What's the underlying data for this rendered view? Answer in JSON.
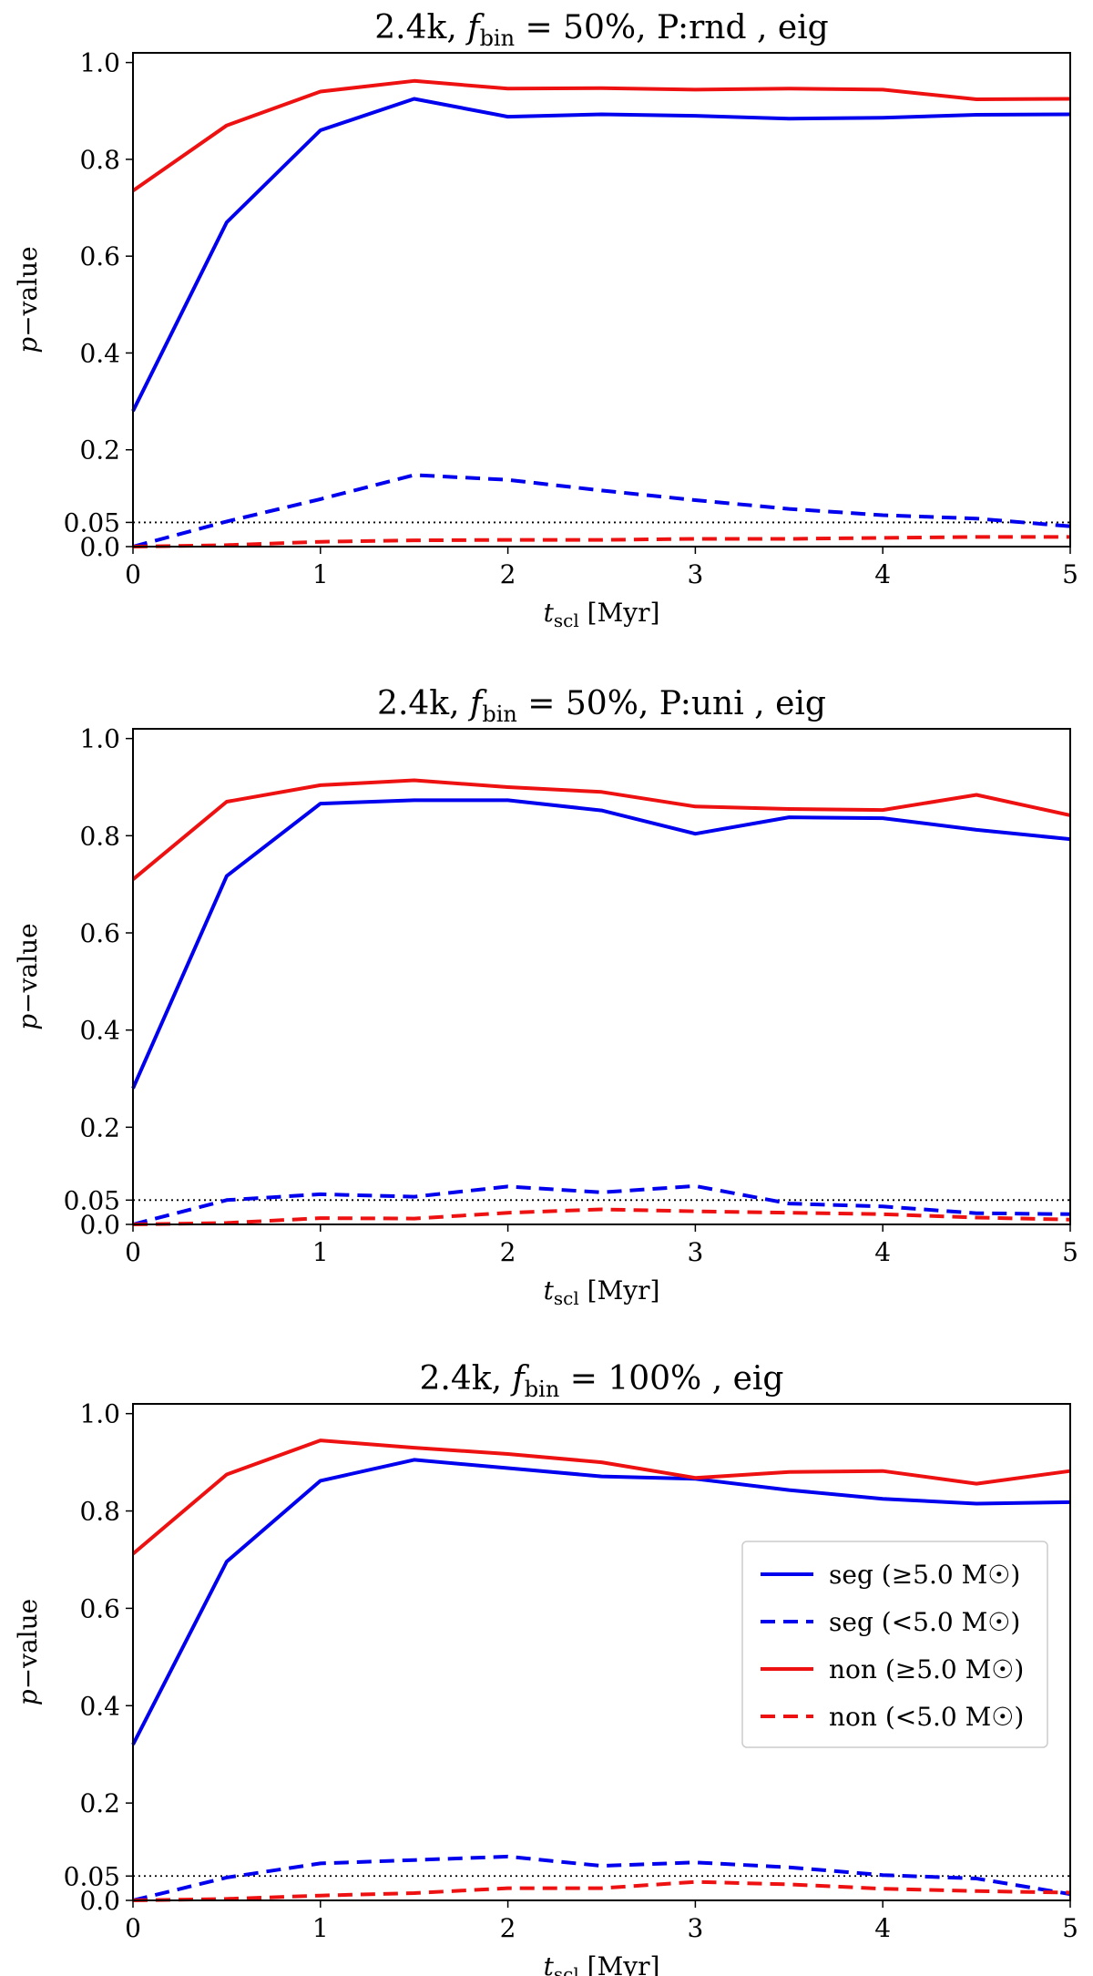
{
  "chart_data": [
    {
      "type": "line",
      "title": "2.4k, f_bin = 50%, P:rnd , eig",
      "title_parts": {
        "prefix": "2.4k, ",
        "f": "f",
        "sub": "bin",
        "rest": " = 50%, P:rnd , eig"
      },
      "xlabel": {
        "t": "t",
        "sub": "scl",
        "unit": " [Myr]"
      },
      "ylabel": "p−value",
      "xlim": [
        0,
        5
      ],
      "ylim": [
        0,
        1.02
      ],
      "xticks": [
        "0",
        "1",
        "2",
        "3",
        "4",
        "5"
      ],
      "yticks": [
        "0.0",
        "0.05",
        "0.2",
        "0.4",
        "0.6",
        "0.8",
        "1.0"
      ],
      "threshold": 0.05,
      "x": [
        0,
        0.5,
        1,
        1.5,
        2,
        2.5,
        3,
        3.5,
        4,
        4.5,
        5
      ],
      "series": [
        {
          "name": "seg (≥5.0 M☉)",
          "color": "#0000ee",
          "style": "solid",
          "values": [
            0.28,
            0.67,
            0.86,
            0.925,
            0.888,
            0.893,
            0.89,
            0.884,
            0.886,
            0.892,
            0.893
          ]
        },
        {
          "name": "seg (<5.0 M☉)",
          "color": "#0000ee",
          "style": "dashed",
          "values": [
            0.0,
            0.052,
            0.098,
            0.148,
            0.138,
            0.116,
            0.096,
            0.078,
            0.065,
            0.058,
            0.042
          ]
        },
        {
          "name": "non (≥5.0 M☉)",
          "color": "#ee1111",
          "style": "solid",
          "values": [
            0.735,
            0.87,
            0.94,
            0.962,
            0.946,
            0.947,
            0.944,
            0.946,
            0.944,
            0.924,
            0.925
          ]
        },
        {
          "name": "non (<5.0 M☉)",
          "color": "#ee1111",
          "style": "dashed",
          "values": [
            0.0,
            0.003,
            0.01,
            0.013,
            0.014,
            0.014,
            0.016,
            0.016,
            0.018,
            0.02,
            0.02
          ]
        }
      ]
    },
    {
      "type": "line",
      "title": "2.4k, f_bin = 50%, P:uni , eig",
      "title_parts": {
        "prefix": "2.4k, ",
        "f": "f",
        "sub": "bin",
        "rest": " = 50%, P:uni , eig"
      },
      "xlabel": {
        "t": "t",
        "sub": "scl",
        "unit": " [Myr]"
      },
      "ylabel": "p−value",
      "xlim": [
        0,
        5
      ],
      "ylim": [
        0,
        1.02
      ],
      "xticks": [
        "0",
        "1",
        "2",
        "3",
        "4",
        "5"
      ],
      "yticks": [
        "0.0",
        "0.05",
        "0.2",
        "0.4",
        "0.6",
        "0.8",
        "1.0"
      ],
      "threshold": 0.05,
      "x": [
        0,
        0.5,
        1,
        1.5,
        2,
        2.5,
        3,
        3.5,
        4,
        4.5,
        5
      ],
      "series": [
        {
          "name": "seg (≥5.0 M☉)",
          "color": "#0000ee",
          "style": "solid",
          "values": [
            0.28,
            0.717,
            0.866,
            0.873,
            0.873,
            0.852,
            0.804,
            0.838,
            0.836,
            0.812,
            0.793
          ]
        },
        {
          "name": "seg (<5.0 M☉)",
          "color": "#0000ee",
          "style": "dashed",
          "values": [
            0.0,
            0.05,
            0.062,
            0.057,
            0.078,
            0.066,
            0.079,
            0.043,
            0.037,
            0.023,
            0.021
          ]
        },
        {
          "name": "non (≥5.0 M☉)",
          "color": "#ee1111",
          "style": "solid",
          "values": [
            0.71,
            0.87,
            0.904,
            0.914,
            0.9,
            0.89,
            0.86,
            0.855,
            0.853,
            0.884,
            0.842
          ]
        },
        {
          "name": "non (<5.0 M☉)",
          "color": "#ee1111",
          "style": "dashed",
          "values": [
            0.0,
            0.003,
            0.013,
            0.012,
            0.024,
            0.031,
            0.027,
            0.024,
            0.021,
            0.014,
            0.01
          ]
        }
      ]
    },
    {
      "type": "line",
      "title": "2.4k, f_bin = 100% , eig",
      "title_parts": {
        "prefix": "2.4k, ",
        "f": "f",
        "sub": "bin",
        "rest": " = 100% , eig"
      },
      "xlabel": {
        "t": "t",
        "sub": "scl",
        "unit": " [Myr]"
      },
      "ylabel": "p−value",
      "xlim": [
        0,
        5
      ],
      "ylim": [
        0,
        1.02
      ],
      "xticks": [
        "0",
        "1",
        "2",
        "3",
        "4",
        "5"
      ],
      "yticks": [
        "0.0",
        "0.05",
        "0.2",
        "0.4",
        "0.6",
        "0.8",
        "1.0"
      ],
      "threshold": 0.05,
      "legend": {
        "placement": "center-right",
        "entries": [
          "seg (≥5.0 M☉)",
          "seg (<5.0 M☉)",
          "non (≥5.0 M☉)",
          "non (<5.0 M☉)"
        ]
      },
      "x": [
        0,
        0.5,
        1,
        1.5,
        2,
        2.5,
        3,
        3.5,
        4,
        4.5,
        5
      ],
      "series": [
        {
          "name": "seg (≥5.0 M☉)",
          "color": "#0000ee",
          "style": "solid",
          "values": [
            0.32,
            0.696,
            0.862,
            0.905,
            0.888,
            0.871,
            0.866,
            0.843,
            0.825,
            0.815,
            0.818
          ]
        },
        {
          "name": "seg (<5.0 M☉)",
          "color": "#0000ee",
          "style": "dashed",
          "values": [
            0.0,
            0.047,
            0.076,
            0.083,
            0.09,
            0.071,
            0.078,
            0.068,
            0.052,
            0.045,
            0.013
          ]
        },
        {
          "name": "non (≥5.0 M☉)",
          "color": "#ee1111",
          "style": "solid",
          "values": [
            0.712,
            0.875,
            0.945,
            0.93,
            0.917,
            0.9,
            0.868,
            0.88,
            0.882,
            0.856,
            0.882
          ]
        },
        {
          "name": "non (<5.0 M☉)",
          "color": "#ee1111",
          "style": "dashed",
          "values": [
            0.0,
            0.003,
            0.01,
            0.015,
            0.025,
            0.025,
            0.038,
            0.033,
            0.024,
            0.019,
            0.016
          ]
        }
      ]
    }
  ]
}
